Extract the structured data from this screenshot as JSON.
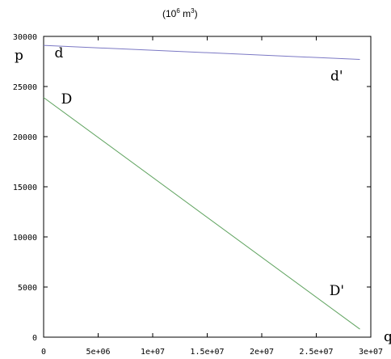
{
  "chart_data": {
    "type": "line",
    "unit_note": {
      "prefix": "(10",
      "exp1": "6",
      "mid": " m",
      "exp2": "3",
      "suffix": ")"
    },
    "xlabel": "q",
    "ylabel": "p",
    "xlim": [
      0,
      30000000
    ],
    "ylim": [
      0,
      30000
    ],
    "x_ticks": [
      0,
      5000000,
      10000000,
      15000000,
      20000000,
      25000000,
      30000000
    ],
    "x_tick_labels": [
      "0",
      "5e+06",
      "1e+07",
      "1.5e+07",
      "2e+07",
      "2.5e+07",
      "3e+07"
    ],
    "y_ticks": [
      0,
      5000,
      10000,
      15000,
      20000,
      25000,
      30000
    ],
    "y_tick_labels": [
      "0",
      "5000",
      "10000",
      "15000",
      "20000",
      "25000",
      "30000"
    ],
    "series": [
      {
        "color": "#7b78c4",
        "x": [
          0,
          29000000
        ],
        "y": [
          29100,
          27700
        ]
      },
      {
        "color": "#5fa35f",
        "x": [
          0,
          29000000
        ],
        "y": [
          23900,
          800
        ]
      }
    ],
    "annotations": [
      {
        "text": "d",
        "x": 1000000,
        "y": 27900
      },
      {
        "text": "d'",
        "x": 26300000,
        "y": 25600
      },
      {
        "text": "D",
        "x": 1600000,
        "y": 23300
      },
      {
        "text": "D'",
        "x": 26200000,
        "y": 4200
      }
    ]
  }
}
